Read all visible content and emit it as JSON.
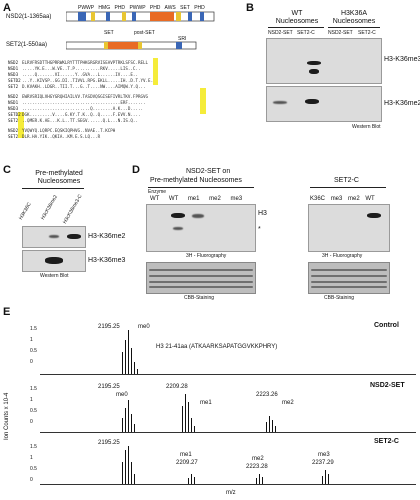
{
  "panels": {
    "A": {
      "label": "A",
      "nsd2_label": "NSD2(1-1365aa)",
      "set2_label": "SET2(1-550aa)",
      "domain_labels": [
        "PWWP",
        "HMG",
        "PHD",
        "PWWP",
        "PHD",
        "AWS",
        "SET",
        "PHD"
      ],
      "set2_domains": [
        "AWS",
        "SET",
        "post-SET",
        "SRI"
      ],
      "seq_names": [
        "NSD2",
        "NSD1",
        "NSD3",
        "SETD2",
        "SET2",
        "NSD2",
        "NSD1",
        "NSD3",
        "SETD2",
        "SET2"
      ]
    },
    "B": {
      "label": "B",
      "group1": "WT Nucleosomes",
      "group2": "H3K36A Nucleosomes",
      "lane_labels": [
        "NSD2-SET",
        "SET2-C",
        "NSD2-SET",
        "SET2-C"
      ],
      "blot1": "H3-K36me3",
      "blot2": "H3-K36me2",
      "footer": "Western Blot"
    },
    "C": {
      "label": "C",
      "title": "Pre-methylated Nucleosomes",
      "lane_labels": [
        "H3K36C",
        "H3cK36me2",
        "H3cK36me3-C"
      ],
      "blot1": "H3-K36me2",
      "blot2": "H3-K36me3",
      "footer": "Western Blot"
    },
    "D": {
      "label": "D",
      "title1": "NSD2-SET on",
      "title2": "Pre-methylated Nucleosomes",
      "enzyme": "Enzyme",
      "lanes_left": [
        "WT",
        "WT",
        "me1",
        "me2",
        "me3"
      ],
      "band_h3": "H3",
      "band_star": "*",
      "fluoro_left": "3H - Fluorography",
      "cbb_left": "CBB-Staining",
      "title_right": "SET2-C",
      "lanes_right": [
        "K36C",
        "me3",
        "me2",
        "WT"
      ],
      "fluoro_right": "3H - Fluorography",
      "cbb_right": "CBB-Staining"
    },
    "E": {
      "label": "E",
      "ylabel": "Ion Counts x 10-4",
      "xlabel": "m/z",
      "spectra": [
        {
          "name": "Control",
          "peptide": "H3 21-41aa (ATKAARKSAPATGGVKKPHRY)",
          "peaks": [
            {
              "mz": "2195.25",
              "tag": "me0"
            }
          ]
        },
        {
          "name": "NSD2-SET",
          "peaks": [
            {
              "mz": "2195.25",
              "tag": "me0"
            },
            {
              "mz": "2209.28",
              "tag": "me1"
            },
            {
              "mz": "2223.26",
              "tag": "me2"
            }
          ]
        },
        {
          "name": "SET2-C",
          "peaks": [
            {
              "mz": "2195.25",
              "tag": ""
            },
            {
              "mz": "2209.27",
              "tag": "me1"
            },
            {
              "mz": "2223.28",
              "tag": "me2"
            },
            {
              "mz": "2237.29",
              "tag": "me3"
            }
          ]
        }
      ],
      "yticks": [
        "1.5",
        "1",
        "0.5",
        "0"
      ]
    }
  }
}
